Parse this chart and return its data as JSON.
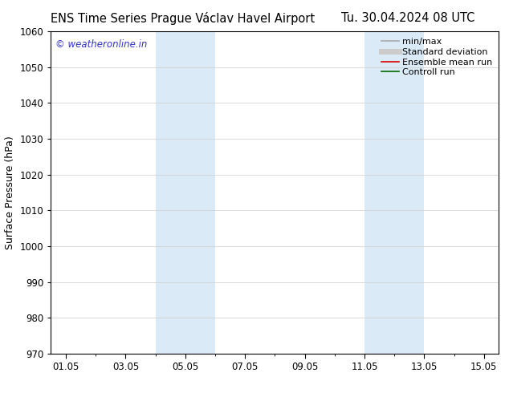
{
  "title_left": "ENS Time Series Prague Václav Havel Airport",
  "title_right": "Tu. 30.04.2024 08 UTC",
  "ylabel": "Surface Pressure (hPa)",
  "ylim": [
    970,
    1060
  ],
  "yticks": [
    970,
    980,
    990,
    1000,
    1010,
    1020,
    1030,
    1040,
    1050,
    1060
  ],
  "xtick_labels": [
    "01.05",
    "03.05",
    "05.05",
    "07.05",
    "09.05",
    "11.05",
    "13.05",
    "15.05"
  ],
  "xtick_positions": [
    1,
    3,
    5,
    7,
    9,
    11,
    13,
    15
  ],
  "xlim": [
    0.5,
    15.5
  ],
  "shaded_regions": [
    {
      "xstart": 4.0,
      "xend": 6.0,
      "color": "#daeaf7"
    },
    {
      "xstart": 11.0,
      "xend": 13.0,
      "color": "#daeaf7"
    }
  ],
  "watermark_text": "© weatheronline.in",
  "watermark_color": "#3333cc",
  "background_color": "#ffffff",
  "grid_color": "#cccccc",
  "legend_items": [
    {
      "label": "min/max",
      "color": "#aaaaaa",
      "lw": 1.2
    },
    {
      "label": "Standard deviation",
      "color": "#cccccc",
      "lw": 5
    },
    {
      "label": "Ensemble mean run",
      "color": "#dd0000",
      "lw": 1.2
    },
    {
      "label": "Controll run",
      "color": "#006600",
      "lw": 1.2
    }
  ],
  "title_fontsize": 10.5,
  "axis_label_fontsize": 9,
  "tick_fontsize": 8.5,
  "watermark_fontsize": 8.5,
  "legend_fontsize": 8
}
